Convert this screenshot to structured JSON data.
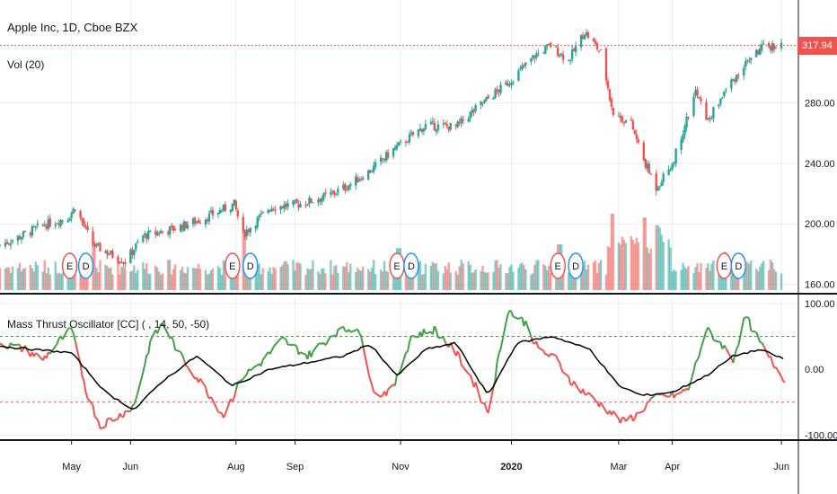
{
  "header": {
    "symbol_title": "Apple Inc, 1D, Cboe BZX",
    "volume_label": "Vol (20)",
    "oscillator_label": "Mass Thrust Oscillator [CC] ( , 14, 50, -50)"
  },
  "price_tag": "317.94",
  "colors": {
    "up": "#26a69a",
    "down": "#ef5350",
    "osc_up": "#43a047",
    "osc_down": "#ef5350",
    "signal": "#000000",
    "upper_band": "#43a047",
    "lower_band": "#ef5350",
    "price_line": "#ef5350",
    "grid": "#e9ecf1",
    "event_e": "#ef5350",
    "event_d": "#2196f3"
  },
  "events": [
    {
      "letter": "E",
      "date": "2019-04-30"
    },
    {
      "letter": "D",
      "date": "2019-05-09"
    },
    {
      "letter": "E",
      "date": "2019-07-30"
    },
    {
      "letter": "D",
      "date": "2019-08-09"
    },
    {
      "letter": "E",
      "date": "2019-10-30"
    },
    {
      "letter": "D",
      "date": "2019-11-07"
    },
    {
      "letter": "E",
      "date": "2020-01-28"
    },
    {
      "letter": "D",
      "date": "2020-02-07"
    },
    {
      "letter": "E",
      "date": "2020-04-30"
    },
    {
      "letter": "D",
      "date": "2020-05-08"
    }
  ],
  "chart_data": [
    {
      "type": "candlestick",
      "title": "Apple Inc, 1D, Cboe BZX",
      "y_ticks": [
        "200.00",
        "240.00",
        "280.00",
        "160.00"
      ],
      "y_tick_values": [
        200,
        240,
        280,
        160
      ],
      "ylim": [
        155,
        345
      ],
      "x_tick_labels": [
        "May",
        "Jun",
        "Aug",
        "Sep",
        "Nov",
        "2020",
        "Mar",
        "Apr",
        "Jun"
      ],
      "x_tick_dates": [
        "2019-05-01",
        "2019-06-03",
        "2019-08-01",
        "2019-09-03",
        "2019-11-01",
        "2020-01-02",
        "2020-03-02",
        "2020-04-01",
        "2020-06-01"
      ],
      "x_range": [
        "2019-03-22",
        "2020-06-10"
      ],
      "last_price": 317.94,
      "close_path": [
        [
          "2019-03-22",
          186
        ],
        [
          "2019-04-01",
          191
        ],
        [
          "2019-04-15",
          199
        ],
        [
          "2019-04-29",
          204
        ],
        [
          "2019-05-03",
          211
        ],
        [
          "2019-05-13",
          186
        ],
        [
          "2019-05-31",
          175
        ],
        [
          "2019-06-10",
          192
        ],
        [
          "2019-06-28",
          197
        ],
        [
          "2019-07-15",
          204
        ],
        [
          "2019-07-31",
          213
        ],
        [
          "2019-08-05",
          193
        ],
        [
          "2019-08-20",
          211
        ],
        [
          "2019-09-05",
          213
        ],
        [
          "2019-09-20",
          218
        ],
        [
          "2019-10-01",
          224
        ],
        [
          "2019-10-15",
          235
        ],
        [
          "2019-10-28",
          249
        ],
        [
          "2019-11-15",
          265
        ],
        [
          "2019-12-02",
          264
        ],
        [
          "2019-12-16",
          279
        ],
        [
          "2019-12-31",
          293
        ],
        [
          "2020-01-15",
          311
        ],
        [
          "2020-01-24",
          318
        ],
        [
          "2020-02-03",
          308
        ],
        [
          "2020-02-12",
          327
        ],
        [
          "2020-02-21",
          313
        ],
        [
          "2020-02-28",
          273
        ],
        [
          "2020-03-09",
          266
        ],
        [
          "2020-03-16",
          242
        ],
        [
          "2020-03-23",
          224
        ],
        [
          "2020-04-01",
          240
        ],
        [
          "2020-04-14",
          287
        ],
        [
          "2020-04-21",
          268
        ],
        [
          "2020-05-01",
          289
        ],
        [
          "2020-05-14",
          309
        ],
        [
          "2020-05-21",
          316
        ],
        [
          "2020-05-29",
          318
        ],
        [
          "2020-06-05",
          317.94
        ]
      ]
    },
    {
      "type": "bar",
      "title": "Vol (20)",
      "note": "volume histogram, relative heights",
      "spikes": [
        [
          "2019-08-05",
          0.8
        ],
        [
          "2020-02-28",
          1.0
        ],
        [
          "2020-03-16",
          0.95
        ],
        [
          "2020-03-23",
          0.85
        ],
        [
          "2020-01-29",
          0.6
        ],
        [
          "2019-05-13",
          0.55
        ],
        [
          "2019-10-31",
          0.55
        ],
        [
          "2020-05-01",
          0.5
        ]
      ]
    },
    {
      "type": "line",
      "title": "Mass Thrust Oscillator [CC] ( , 14, 50, -50)",
      "y_ticks": [
        "100.00",
        "0.00",
        "-100.00"
      ],
      "y_tick_values": [
        100,
        0,
        -100
      ],
      "ylim": [
        -105,
        108
      ],
      "bands": [
        50,
        -50
      ],
      "series": [
        {
          "role": "oscillator",
          "values": [
            [
              "2019-03-22",
              40
            ],
            [
              "2019-04-05",
              30
            ],
            [
              "2019-04-15",
              15
            ],
            [
              "2019-04-25",
              45
            ],
            [
              "2019-05-01",
              60
            ],
            [
              "2019-05-10",
              -40
            ],
            [
              "2019-05-17",
              -85
            ],
            [
              "2019-05-28",
              -70
            ],
            [
              "2019-06-05",
              -55
            ],
            [
              "2019-06-14",
              40
            ],
            [
              "2019-06-21",
              70
            ],
            [
              "2019-07-01",
              20
            ],
            [
              "2019-07-15",
              -30
            ],
            [
              "2019-07-25",
              -70
            ],
            [
              "2019-08-05",
              -10
            ],
            [
              "2019-08-15",
              10
            ],
            [
              "2019-08-27",
              45
            ],
            [
              "2019-09-10",
              20
            ],
            [
              "2019-09-25",
              55
            ],
            [
              "2019-10-08",
              65
            ],
            [
              "2019-10-18",
              -40
            ],
            [
              "2019-10-28",
              -30
            ],
            [
              "2019-11-07",
              50
            ],
            [
              "2019-11-20",
              60
            ],
            [
              "2019-12-02",
              25
            ],
            [
              "2019-12-10",
              -10
            ],
            [
              "2019-12-20",
              -65
            ],
            [
              "2019-12-31",
              90
            ],
            [
              "2020-01-10",
              70
            ],
            [
              "2020-01-17",
              30
            ],
            [
              "2020-01-27",
              15
            ],
            [
              "2020-02-05",
              -20
            ],
            [
              "2020-02-14",
              -40
            ],
            [
              "2020-02-24",
              -60
            ],
            [
              "2020-03-04",
              -80
            ],
            [
              "2020-03-12",
              -70
            ],
            [
              "2020-03-19",
              -50
            ],
            [
              "2020-03-26",
              -40
            ],
            [
              "2020-04-03",
              -40
            ],
            [
              "2020-04-10",
              -30
            ],
            [
              "2020-04-20",
              60
            ],
            [
              "2020-04-28",
              40
            ],
            [
              "2020-05-05",
              15
            ],
            [
              "2020-05-12",
              80
            ],
            [
              "2020-05-20",
              40
            ],
            [
              "2020-05-27",
              10
            ],
            [
              "2020-06-03",
              -15
            ]
          ]
        },
        {
          "role": "signal",
          "values": [
            [
              "2019-03-22",
              35
            ],
            [
              "2019-04-10",
              30
            ],
            [
              "2019-05-01",
              25
            ],
            [
              "2019-05-20",
              -35
            ],
            [
              "2019-06-05",
              -62
            ],
            [
              "2019-06-20",
              -20
            ],
            [
              "2019-07-10",
              20
            ],
            [
              "2019-07-30",
              -25
            ],
            [
              "2019-08-20",
              0
            ],
            [
              "2019-09-10",
              10
            ],
            [
              "2019-09-30",
              20
            ],
            [
              "2019-10-15",
              38
            ],
            [
              "2019-10-30",
              -10
            ],
            [
              "2019-11-15",
              30
            ],
            [
              "2019-12-02",
              40
            ],
            [
              "2019-12-20",
              -40
            ],
            [
              "2020-01-05",
              40
            ],
            [
              "2020-01-25",
              50
            ],
            [
              "2020-02-15",
              30
            ],
            [
              "2020-03-02",
              -25
            ],
            [
              "2020-03-15",
              -40
            ],
            [
              "2020-04-01",
              -35
            ],
            [
              "2020-04-20",
              -10
            ],
            [
              "2020-05-05",
              20
            ],
            [
              "2020-05-20",
              30
            ],
            [
              "2020-06-03",
              15
            ]
          ]
        }
      ]
    }
  ]
}
